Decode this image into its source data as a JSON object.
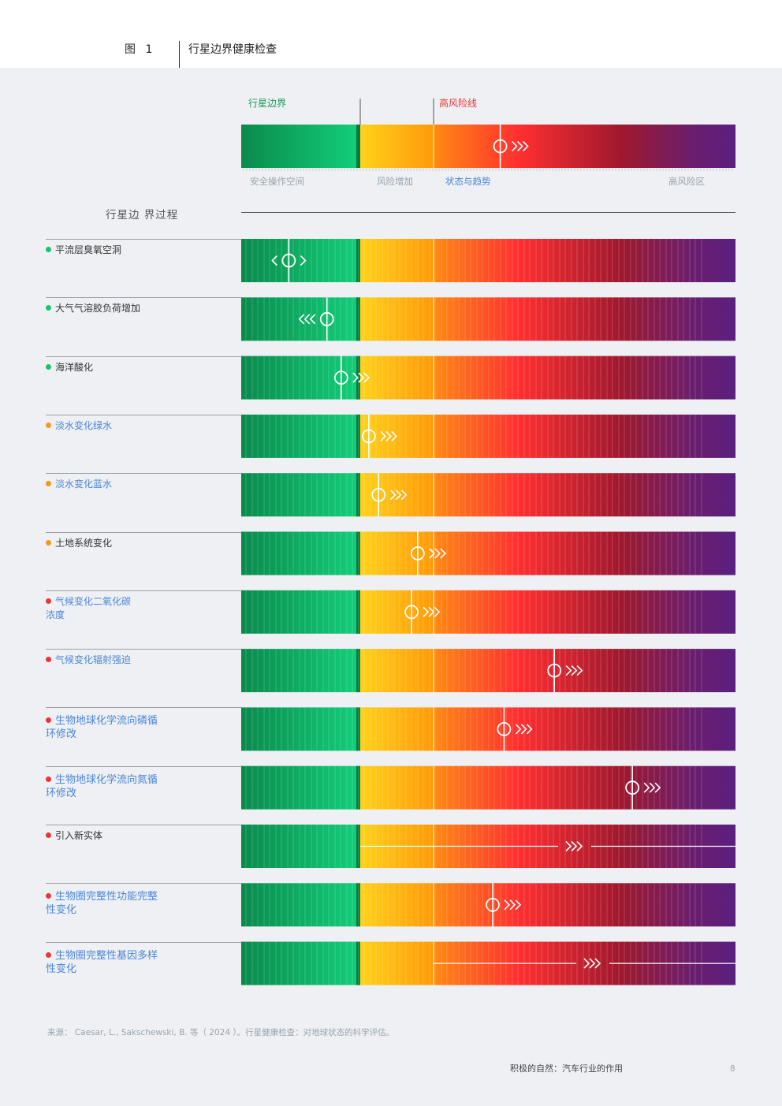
{
  "header": {
    "figure_label": "图 1",
    "title": "行星边界健康检查"
  },
  "legend": {
    "boundary_label": "行星边界",
    "high_risk_line_label": "高风险线",
    "zones": {
      "safe": "安全操作空间",
      "increasing": "风险增加",
      "status": "状态与趋势",
      "high": "高风险区"
    }
  },
  "section_title": "行星边 界过程",
  "colors": {
    "dot_green": "#19c46d",
    "dot_orange": "#f39a1a",
    "dot_red": "#e8363a",
    "label_link": "#4a86d8"
  },
  "chart_data": {
    "type": "bar",
    "scale": "0 = low, 1 = safe boundary, 1.6 = high-risk line, 4 = max",
    "processes": [
      {
        "label": "平流层臭氧空洞",
        "dot": "green",
        "style": "dark",
        "value": 0.4,
        "trend": "stable"
      },
      {
        "label": "大气气溶胶负荷增加",
        "dot": "green",
        "style": "dark",
        "value": 0.72,
        "trend": "improving"
      },
      {
        "label": "海洋酸化",
        "dot": "green",
        "style": "dark",
        "value": 0.84,
        "trend": "worsening"
      },
      {
        "label": "淡水变化绿水",
        "dot": "orange",
        "style": "link",
        "value": 1.07,
        "trend": "worsening"
      },
      {
        "label": "淡水变化蓝水",
        "dot": "orange",
        "style": "link",
        "value": 1.15,
        "trend": "worsening"
      },
      {
        "label": "土地系统变化",
        "dot": "orange",
        "style": "dark",
        "value": 1.47,
        "trend": "worsening"
      },
      {
        "label": "气候变化二氧化碳浓度",
        "dot": "red",
        "style": "link",
        "value": 1.42,
        "trend": "worsening"
      },
      {
        "label": "气候变化辐射强迫",
        "dot": "red",
        "style": "link",
        "value": 2.56,
        "trend": "worsening"
      },
      {
        "label": "生物地球化学流向磷循环修改",
        "dot": "red",
        "style": "link-big",
        "value": 2.16,
        "trend": "worsening"
      },
      {
        "label": "生物地球化学流向氮循环修改",
        "dot": "red",
        "style": "link-big",
        "value": 3.18,
        "trend": "worsening"
      },
      {
        "label": "引入新实体",
        "dot": "red",
        "style": "dark",
        "value": null,
        "trend": "worsening"
      },
      {
        "label": "生物圈完整性功能完整性变化",
        "dot": "red",
        "style": "link-big",
        "value": 2.07,
        "trend": "worsening"
      },
      {
        "label": "生物圈完整性基因多样性变化",
        "dot": "red",
        "style": "link-big",
        "value": null,
        "trend": "worsening"
      }
    ],
    "legend_marker": {
      "value": 2.13,
      "trend": "worsening"
    }
  },
  "source": "来源： Caesar, L., Sakschewski, B. 等（ 2024 ）。行星健康检查：对地球状态的科学评估。",
  "footer": {
    "title": "积极的自然：汽车行业的作用",
    "page": "8"
  }
}
